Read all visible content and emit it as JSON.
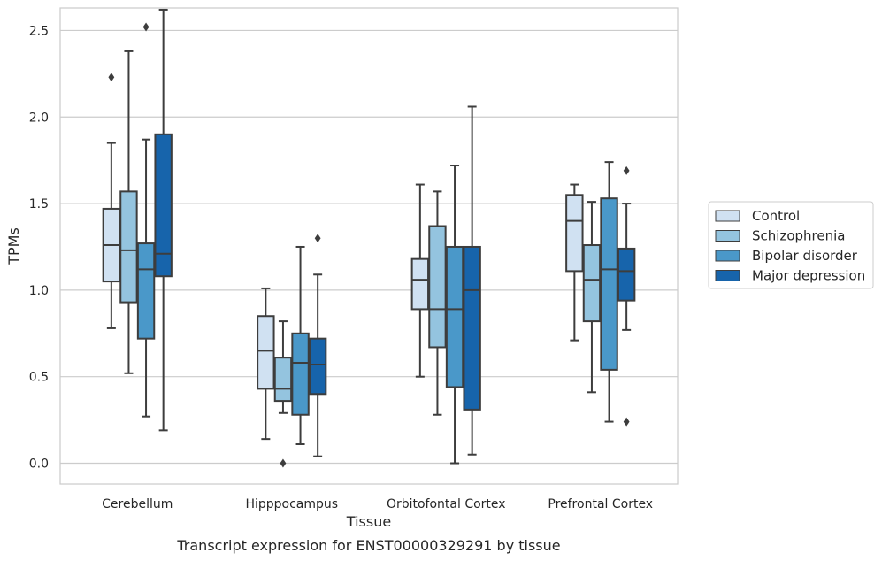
{
  "chart_data": {
    "type": "box",
    "xlabel": "Tissue",
    "ylabel": "TPMs",
    "caption": "Transcript expression for ENST00000329291 by tissue",
    "ylim": [
      -0.12,
      2.63
    ],
    "yticks": [
      "0.0",
      "0.5",
      "1.0",
      "1.5",
      "2.0",
      "2.5"
    ],
    "grid": "horizontal",
    "legend_position": "right",
    "categories": [
      "Cerebellum",
      "Hipppocampus",
      "Orbitofontal Cortex",
      "Prefrontal Cortex"
    ],
    "series": [
      {
        "name": "Control",
        "color": "#d0e1f2",
        "boxes": [
          {
            "whislo": 0.78,
            "q1": 1.05,
            "med": 1.26,
            "q3": 1.47,
            "whishi": 1.85,
            "fliers": [
              2.23
            ]
          },
          {
            "whislo": 0.14,
            "q1": 0.43,
            "med": 0.65,
            "q3": 0.85,
            "whishi": 1.01,
            "fliers": []
          },
          {
            "whislo": 0.5,
            "q1": 0.89,
            "med": 1.06,
            "q3": 1.18,
            "whishi": 1.61,
            "fliers": []
          },
          {
            "whislo": 0.71,
            "q1": 1.11,
            "med": 1.4,
            "q3": 1.55,
            "whishi": 1.61,
            "fliers": []
          }
        ]
      },
      {
        "name": "Schizophrenia",
        "color": "#94c4df",
        "boxes": [
          {
            "whislo": 0.52,
            "q1": 0.93,
            "med": 1.23,
            "q3": 1.57,
            "whishi": 2.38,
            "fliers": []
          },
          {
            "whislo": 0.29,
            "q1": 0.36,
            "med": 0.43,
            "q3": 0.61,
            "whishi": 0.82,
            "fliers": [
              0.0
            ]
          },
          {
            "whislo": 0.28,
            "q1": 0.67,
            "med": 0.89,
            "q3": 1.37,
            "whishi": 1.57,
            "fliers": []
          },
          {
            "whislo": 0.41,
            "q1": 0.82,
            "med": 1.06,
            "q3": 1.26,
            "whishi": 1.51,
            "fliers": []
          }
        ]
      },
      {
        "name": "Bipolar disorder",
        "color": "#4a98c9",
        "boxes": [
          {
            "whislo": 0.27,
            "q1": 0.72,
            "med": 1.12,
            "q3": 1.27,
            "whishi": 1.87,
            "fliers": [
              2.52
            ]
          },
          {
            "whislo": 0.11,
            "q1": 0.28,
            "med": 0.58,
            "q3": 0.75,
            "whishi": 1.25,
            "fliers": []
          },
          {
            "whislo": 0.0,
            "q1": 0.44,
            "med": 0.89,
            "q3": 1.25,
            "whishi": 1.72,
            "fliers": []
          },
          {
            "whislo": 0.24,
            "q1": 0.54,
            "med": 1.12,
            "q3": 1.53,
            "whishi": 1.74,
            "fliers": []
          }
        ]
      },
      {
        "name": "Major depression",
        "color": "#1764ab",
        "boxes": [
          {
            "whislo": 0.19,
            "q1": 1.08,
            "med": 1.21,
            "q3": 1.9,
            "whishi": 2.62,
            "fliers": []
          },
          {
            "whislo": 0.04,
            "q1": 0.4,
            "med": 0.57,
            "q3": 0.72,
            "whishi": 1.09,
            "fliers": [
              1.3
            ]
          },
          {
            "whislo": 0.05,
            "q1": 0.31,
            "med": 1.0,
            "q3": 1.25,
            "whishi": 2.06,
            "fliers": []
          },
          {
            "whislo": 0.77,
            "q1": 0.94,
            "med": 1.11,
            "q3": 1.24,
            "whishi": 1.5,
            "fliers": [
              0.24,
              1.69
            ]
          }
        ]
      }
    ]
  }
}
